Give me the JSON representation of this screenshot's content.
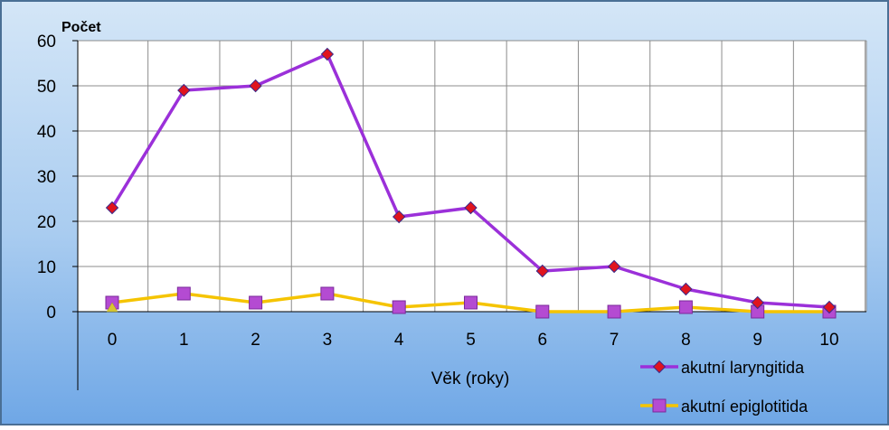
{
  "chart_data": {
    "type": "line",
    "ylabel": "Počet",
    "xlabel": "Věk (roky)",
    "categories": [
      "0",
      "1",
      "2",
      "3",
      "4",
      "5",
      "6",
      "7",
      "8",
      "9",
      "10"
    ],
    "ylim": [
      0,
      60
    ],
    "yticks": [
      0,
      10,
      20,
      30,
      40,
      50,
      60
    ],
    "grid": true,
    "legend_position": "bottom-right",
    "series": [
      {
        "name": "akutní laryngitida",
        "values": [
          23,
          49,
          50,
          57,
          21,
          23,
          9,
          10,
          5,
          2,
          1
        ],
        "line_color": "#9b30d9",
        "marker": "diamond",
        "marker_color": "#e0141e"
      },
      {
        "name": "akutní epiglotitida",
        "values": [
          2,
          4,
          2,
          4,
          1,
          2,
          0,
          0,
          1,
          0,
          0
        ],
        "line_color": "#f5c400",
        "marker": "square",
        "marker_color": "#b44bd2"
      }
    ]
  }
}
